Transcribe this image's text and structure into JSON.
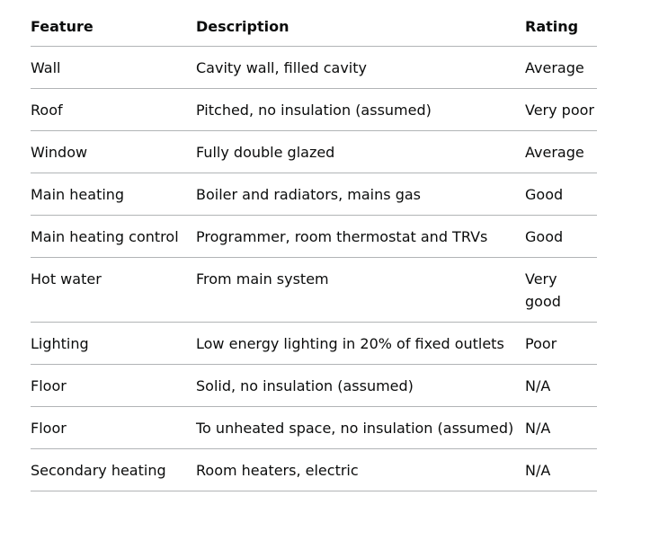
{
  "table": {
    "headers": [
      "Feature",
      "Description",
      "Rating"
    ],
    "rows": [
      {
        "feature": "Wall",
        "description": "Cavity wall, filled cavity",
        "rating": "Average"
      },
      {
        "feature": "Roof",
        "description": "Pitched, no insulation (assumed)",
        "rating": "Very poor"
      },
      {
        "feature": "Window",
        "description": "Fully double glazed",
        "rating": "Average"
      },
      {
        "feature": "Main heating",
        "description": "Boiler and radiators, mains gas",
        "rating": "Good"
      },
      {
        "feature": "Main heating control",
        "description": "Programmer, room thermostat and TRVs",
        "rating": "Good"
      },
      {
        "feature": "Hot water",
        "description": "From main system",
        "rating": "Very good"
      },
      {
        "feature": "Lighting",
        "description": "Low energy lighting in 20% of fixed outlets",
        "rating": "Poor"
      },
      {
        "feature": "Floor",
        "description": "Solid, no insulation (assumed)",
        "rating": "N/A"
      },
      {
        "feature": "Floor",
        "description": "To unheated space, no insulation (assumed)",
        "rating": "N/A"
      },
      {
        "feature": "Secondary heating",
        "description": "Room heaters, electric",
        "rating": "N/A"
      }
    ]
  }
}
